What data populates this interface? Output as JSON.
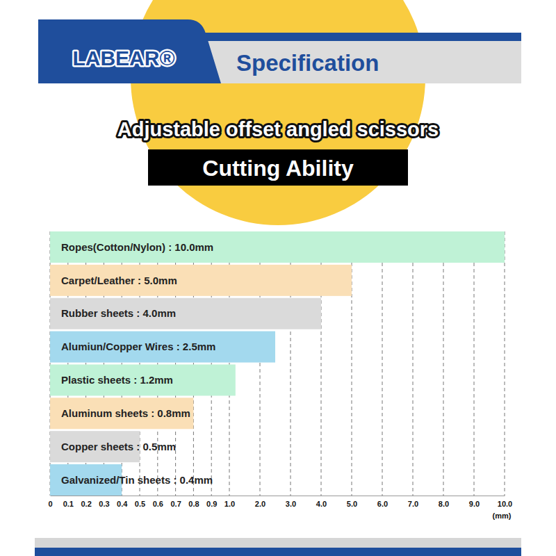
{
  "chart_data": {
    "type": "bar",
    "orientation": "horizontal",
    "brand": "LABEAR®",
    "header": "Specification",
    "title": "Adjustable offset angled scissors",
    "subtitle": "Cutting Ability",
    "x_label": "(mm)",
    "categories": [
      "Ropes(Cotton/Nylon) : 10.0mm",
      "Carpet/Leather : 5.0mm",
      "Rubber sheets : 4.0mm",
      "Alumiun/Copper Wires : 2.5mm",
      "Plastic sheets : 1.2mm",
      "Aluminum sheets : 0.8mm",
      "Copper sheets : 0.5mm",
      "Galvanized/Tin sheets : 0.4mm"
    ],
    "values": [
      10.0,
      5.0,
      4.0,
      2.5,
      1.2,
      0.8,
      0.5,
      0.4
    ],
    "colors": [
      "#bff2d6",
      "#fadfb6",
      "#dadada",
      "#a3d9ee",
      "#bff2d6",
      "#fadfb6",
      "#dadada",
      "#a3d9ee"
    ],
    "xlim": [
      0,
      10
    ],
    "xticks": [
      0,
      0.1,
      0.2,
      0.3,
      0.4,
      0.5,
      0.6,
      0.7,
      0.8,
      0.9,
      {
        "value": 1,
        "label": "1.0"
      },
      {
        "value": 2,
        "label": "2.0"
      },
      {
        "value": 3,
        "label": "3.0"
      },
      {
        "value": 4,
        "label": "4.0"
      },
      {
        "value": 5,
        "label": "5.0"
      },
      {
        "value": 6,
        "label": "6.0"
      },
      {
        "value": 7,
        "label": "7.0"
      },
      {
        "value": 8,
        "label": "8.0"
      },
      {
        "value": 9,
        "label": "9.0"
      },
      {
        "value": 10,
        "label": "10.0"
      }
    ],
    "grid": true,
    "tick_labels": "x"
  }
}
